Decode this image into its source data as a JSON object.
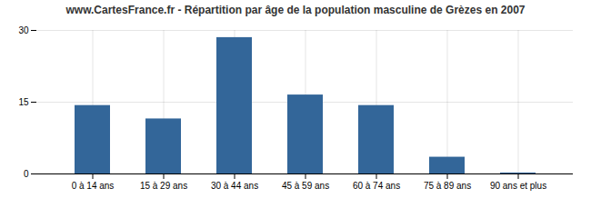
{
  "chart_data": {
    "type": "bar",
    "title": "www.CartesFrance.fr - Répartition par âge de la population masculine de Grèzes en 2007",
    "categories": [
      "0 à 14 ans",
      "15 à 29 ans",
      "30 à 44 ans",
      "45 à 59 ans",
      "60 à 74 ans",
      "75 à 89 ans",
      "90 ans et plus"
    ],
    "values": [
      14.3,
      11.5,
      28.5,
      16.5,
      14.3,
      3.5,
      0.2
    ],
    "color": "#336699",
    "ylim": [
      0,
      30
    ],
    "yticks": [
      0,
      15,
      30
    ],
    "grid": true
  }
}
